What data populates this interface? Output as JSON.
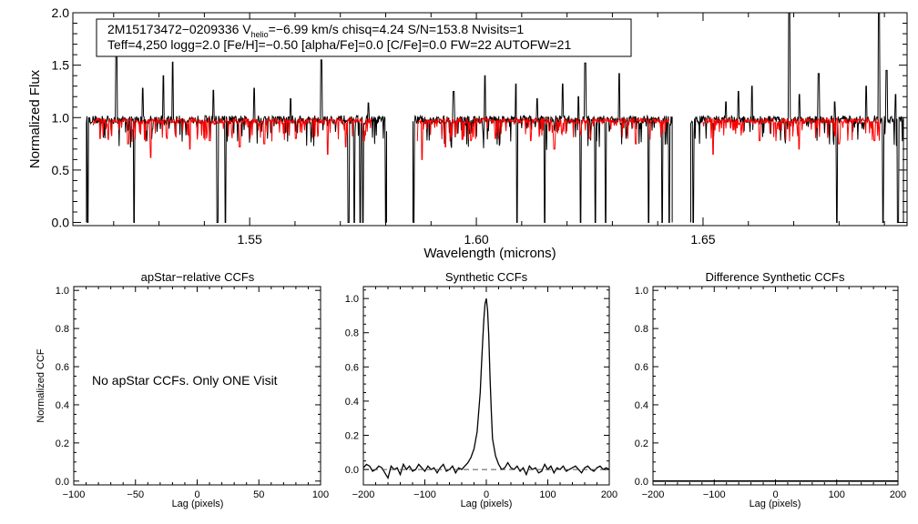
{
  "chart_data": [
    {
      "type": "line",
      "title": "",
      "xlabel": "Wavelength (microns)",
      "ylabel": "Normalized Flux",
      "xlim": [
        1.511,
        1.695
      ],
      "ylim": [
        -0.03,
        2.0
      ],
      "xticks": [
        1.55,
        1.6,
        1.65
      ],
      "xtick_labels": [
        "1.55",
        "1.60",
        "1.65"
      ],
      "yticks": [
        0.0,
        0.5,
        1.0,
        1.5,
        2.0
      ],
      "ytick_labels": [
        "0.0",
        "0.5",
        "1.0",
        "1.5",
        "2.0"
      ],
      "info": {
        "line1_a": "2M15173472−0209336  V",
        "line1_sub": "helio",
        "line1_b": "=−6.99 km/s  chisq=4.24  S/N=153.8  Nvisits=1",
        "line2": "Teff=4,250 logg=2.0 [Fe/H]=−0.50 [alpha/Fe]=0.0 [C/Fe]=0.0 FW=22 AUTOFW=21"
      },
      "chips": [
        [
          1.514,
          1.5802
        ],
        [
          1.586,
          1.6432
        ],
        [
          1.6473,
          1.6942
        ]
      ],
      "series": [
        {
          "color": "#000000",
          "baseline": 0.98,
          "emission": [
            [
              1.5206,
              1.62
            ],
            [
              1.5264,
              1.28
            ],
            [
              1.531,
              1.4
            ],
            [
              1.533,
              1.53
            ],
            [
              1.542,
              1.26
            ],
            [
              1.551,
              1.28
            ],
            [
              1.559,
              1.18
            ],
            [
              1.5658,
              1.55
            ],
            [
              1.5762,
              1.14
            ],
            [
              1.595,
              1.25
            ],
            [
              1.6019,
              1.4
            ],
            [
              1.6088,
              1.32
            ],
            [
              1.6134,
              1.18
            ],
            [
              1.619,
              1.32
            ],
            [
              1.6225,
              1.2
            ],
            [
              1.624,
              1.52
            ],
            [
              1.6285,
              1.2
            ],
            [
              1.6315,
              1.42
            ],
            [
              1.655,
              1.15
            ],
            [
              1.6578,
              1.25
            ],
            [
              1.6608,
              1.3
            ],
            [
              1.669,
              2.0
            ],
            [
              1.6712,
              1.22
            ],
            [
              1.6755,
              1.42
            ],
            [
              1.679,
              1.15
            ],
            [
              1.686,
              1.3
            ],
            [
              1.6888,
              2.0
            ],
            [
              1.6905,
              1.45
            ],
            [
              1.6925,
              1.22
            ]
          ],
          "dropouts": [
            [
              1.5143,
              0.0
            ],
            [
              1.5245,
              0.0
            ],
            [
              1.5429,
              0.0
            ],
            [
              1.5446,
              0.0
            ],
            [
              1.5718,
              0.0
            ],
            [
              1.5731,
              0.0
            ],
            [
              1.5744,
              0.0
            ],
            [
              1.575,
              0.0
            ],
            [
              1.58,
              0.0
            ],
            [
              1.5862,
              0.0
            ],
            [
              1.609,
              0.0
            ],
            [
              1.6151,
              0.0
            ],
            [
              1.623,
              0.0
            ],
            [
              1.6262,
              0.0
            ],
            [
              1.6285,
              0.0
            ],
            [
              1.638,
              0.0
            ],
            [
              1.641,
              0.0
            ],
            [
              1.6425,
              0.0
            ],
            [
              1.6478,
              0.0
            ],
            [
              1.6795,
              0.0
            ],
            [
              1.6897,
              0.0
            ],
            [
              1.693,
              0.0
            ]
          ]
        },
        {
          "color": "#ff0000",
          "baseline": 0.97,
          "range": [
            1.5155,
            1.577,
            1.587,
            1.6425,
            1.65,
            1.689
          ],
          "absorptions": [
            [
              1.517,
              0.8
            ],
            [
              1.5232,
              0.75
            ],
            [
              1.5282,
              0.62
            ],
            [
              1.5318,
              0.8
            ],
            [
              1.5368,
              0.7
            ],
            [
              1.5412,
              0.78
            ],
            [
              1.5478,
              0.72
            ],
            [
              1.5532,
              0.75
            ],
            [
              1.5602,
              0.8
            ],
            [
              1.5672,
              0.65
            ],
            [
              1.5712,
              0.72
            ],
            [
              1.5752,
              0.78
            ],
            [
              1.588,
              0.6
            ],
            [
              1.5932,
              0.72
            ],
            [
              1.5988,
              0.78
            ],
            [
              1.6042,
              0.8
            ],
            [
              1.612,
              0.78
            ],
            [
              1.6172,
              0.7
            ],
            [
              1.625,
              0.8
            ],
            [
              1.6352,
              0.75
            ],
            [
              1.6522,
              0.65
            ],
            [
              1.6625,
              0.78
            ],
            [
              1.6712,
              0.7
            ],
            [
              1.68,
              0.75
            ],
            [
              1.6878,
              0.78
            ]
          ]
        }
      ]
    },
    {
      "type": "line",
      "title": "apStar−relative CCFs",
      "xlabel": "Lag (pixels)",
      "ylabel": "Normalized CCF",
      "xlim": [
        -100,
        100
      ],
      "ylim": [
        -0.02,
        1.02
      ],
      "xticks": [
        -100,
        -50,
        0,
        50,
        100
      ],
      "xtick_labels": [
        "−100",
        "−50",
        "0",
        "50",
        "100"
      ],
      "yticks": [
        0.0,
        0.2,
        0.4,
        0.6,
        0.8,
        1.0
      ],
      "ytick_labels": [
        "0.0",
        "0.2",
        "0.4",
        "0.6",
        "0.8",
        "1.0"
      ],
      "note": "No apStar CCFs.  Only ONE Visit"
    },
    {
      "type": "line",
      "title": "Synthetic CCFs",
      "xlabel": "Lag (pixels)",
      "ylabel": "",
      "xlim": [
        -200,
        200
      ],
      "ylim": [
        -0.09,
        1.07
      ],
      "xticks": [
        -200,
        -100,
        0,
        100,
        200
      ],
      "xtick_labels": [
        "−200",
        "−100",
        "0",
        "100",
        "200"
      ],
      "yticks": [
        0.0,
        0.2,
        0.4,
        0.6,
        0.8,
        1.0
      ],
      "ytick_labels": [
        "0.0",
        "0.2",
        "0.4",
        "0.6",
        "0.8",
        "1.0"
      ],
      "series": [
        {
          "style": "solid",
          "x": [
            -200,
            -195,
            -190,
            -185,
            -180,
            -175,
            -170,
            -165,
            -160,
            -155,
            -150,
            -145,
            -140,
            -135,
            -130,
            -125,
            -120,
            -115,
            -110,
            -105,
            -100,
            -95,
            -90,
            -85,
            -80,
            -75,
            -70,
            -65,
            -60,
            -55,
            -50,
            -45,
            -40,
            -35,
            -30,
            -25,
            -20,
            -15,
            -10,
            -8,
            -6,
            -4,
            -2,
            0,
            2,
            4,
            6,
            8,
            10,
            15,
            20,
            25,
            30,
            35,
            40,
            45,
            50,
            55,
            60,
            65,
            70,
            75,
            80,
            85,
            90,
            95,
            100,
            105,
            110,
            115,
            120,
            125,
            130,
            135,
            140,
            145,
            150,
            155,
            160,
            165,
            170,
            175,
            180,
            185,
            190,
            195,
            200
          ],
          "y": [
            0.01,
            0.03,
            0.02,
            -0.01,
            0.0,
            0.02,
            0.01,
            -0.02,
            -0.05,
            0.02,
            0.0,
            0.01,
            -0.03,
            0.03,
            0.0,
            0.02,
            -0.01,
            0.0,
            0.03,
            0.01,
            -0.01,
            0.02,
            0.0,
            0.01,
            -0.02,
            0.01,
            0.03,
            -0.01,
            0.0,
            0.02,
            -0.02,
            0.01,
            0.0,
            0.02,
            0.04,
            0.07,
            0.12,
            0.22,
            0.45,
            0.6,
            0.75,
            0.88,
            0.97,
            1.0,
            0.93,
            0.78,
            0.55,
            0.35,
            0.18,
            0.08,
            0.03,
            0.0,
            0.01,
            0.04,
            0.01,
            0.0,
            0.02,
            -0.01,
            0.01,
            -0.03,
            0.02,
            0.0,
            0.01,
            -0.02,
            -0.01,
            0.03,
            0.0,
            0.02,
            -0.02,
            0.01,
            0.0,
            0.02,
            -0.01,
            0.0,
            0.01,
            0.02,
            0.0,
            -0.02,
            0.01,
            0.02,
            0.0,
            -0.01,
            0.01,
            0.02,
            0.0,
            0.01,
            0.0
          ]
        },
        {
          "style": "dashed",
          "x": [
            -200,
            200
          ],
          "y": [
            0.0,
            0.0
          ]
        }
      ]
    },
    {
      "type": "line",
      "title": "Difference Synthetic CCFs",
      "xlabel": "Lag (pixels)",
      "ylabel": "",
      "xlim": [
        -200,
        200
      ],
      "ylim": [
        -0.02,
        1.02
      ],
      "xticks": [
        -200,
        -100,
        0,
        100,
        200
      ],
      "xtick_labels": [
        "−200",
        "−100",
        "0",
        "100",
        "200"
      ],
      "yticks": [
        0.0,
        0.2,
        0.4,
        0.6,
        0.8,
        1.0
      ],
      "ytick_labels": [
        "0.0",
        "0.2",
        "0.4",
        "0.6",
        "0.8",
        "1.0"
      ],
      "series": [
        {
          "style": "solid",
          "x": [
            -200,
            200
          ],
          "y": [
            0.0,
            0.0
          ]
        }
      ]
    }
  ]
}
